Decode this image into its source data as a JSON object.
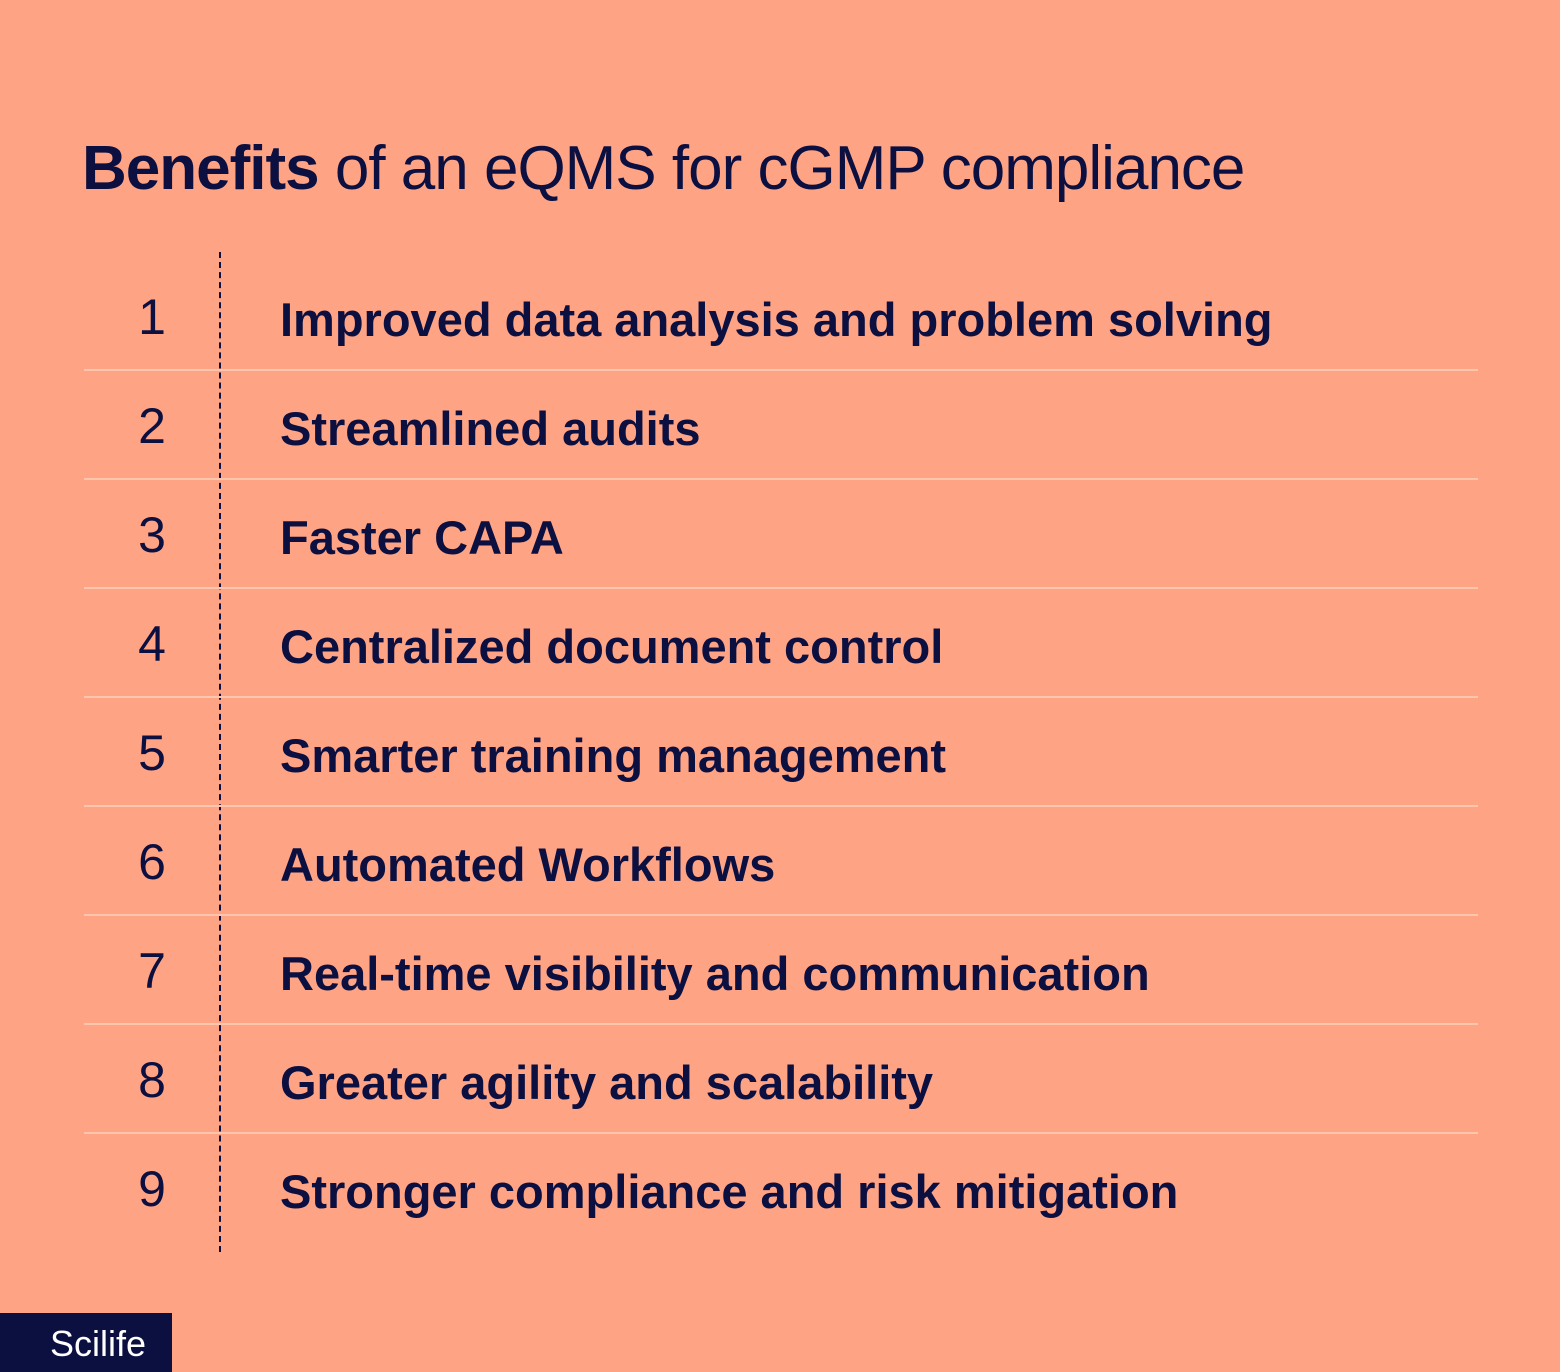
{
  "title": {
    "bold": "Benefits",
    "rest": " of an eQMS for cGMP compliance"
  },
  "benefits": [
    {
      "number": "1",
      "label": "Improved data analysis and problem solving"
    },
    {
      "number": "2",
      "label": "Streamlined audits"
    },
    {
      "number": "3",
      "label": "Faster CAPA"
    },
    {
      "number": "4",
      "label": "Centralized document control"
    },
    {
      "number": "5",
      "label": "Smarter training management"
    },
    {
      "number": "6",
      "label": "Automated Workflows"
    },
    {
      "number": "7",
      "label": "Real-time visibility and communication"
    },
    {
      "number": "8",
      "label": "Greater agility and scalability"
    },
    {
      "number": "9",
      "label": "Stronger compliance and risk mitigation"
    }
  ],
  "logo": "Scilife",
  "colors": {
    "background": "#ffa385",
    "text": "#0b1040",
    "divider": "#ffc6ae"
  }
}
